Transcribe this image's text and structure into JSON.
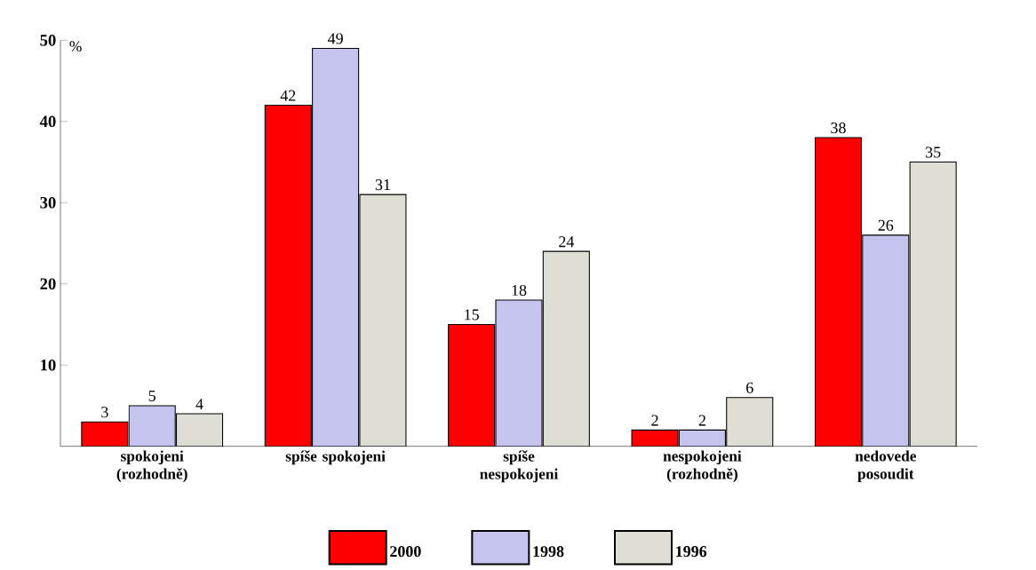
{
  "chart_data": {
    "type": "bar",
    "ylabel": "%",
    "categories": [
      "spokojeni (rozhodně)",
      "spíše spokojeni",
      "spíše nespokojeni",
      "nespokojeni (rozhodně)",
      "nedovede posoudit"
    ],
    "series": [
      {
        "name": "2000",
        "color": "#ff0000",
        "values": [
          3,
          42,
          15,
          2,
          38
        ]
      },
      {
        "name": "1998",
        "color": "#c4c4ee",
        "values": [
          5,
          49,
          18,
          2,
          26
        ]
      },
      {
        "name": "1996",
        "color": "#deded4",
        "values": [
          4,
          31,
          24,
          6,
          35
        ]
      }
    ],
    "ylim": [
      0,
      50
    ],
    "yticks": [
      10,
      20,
      30,
      40,
      50
    ],
    "data_labels": true,
    "legend": "bottom",
    "grid": false
  }
}
